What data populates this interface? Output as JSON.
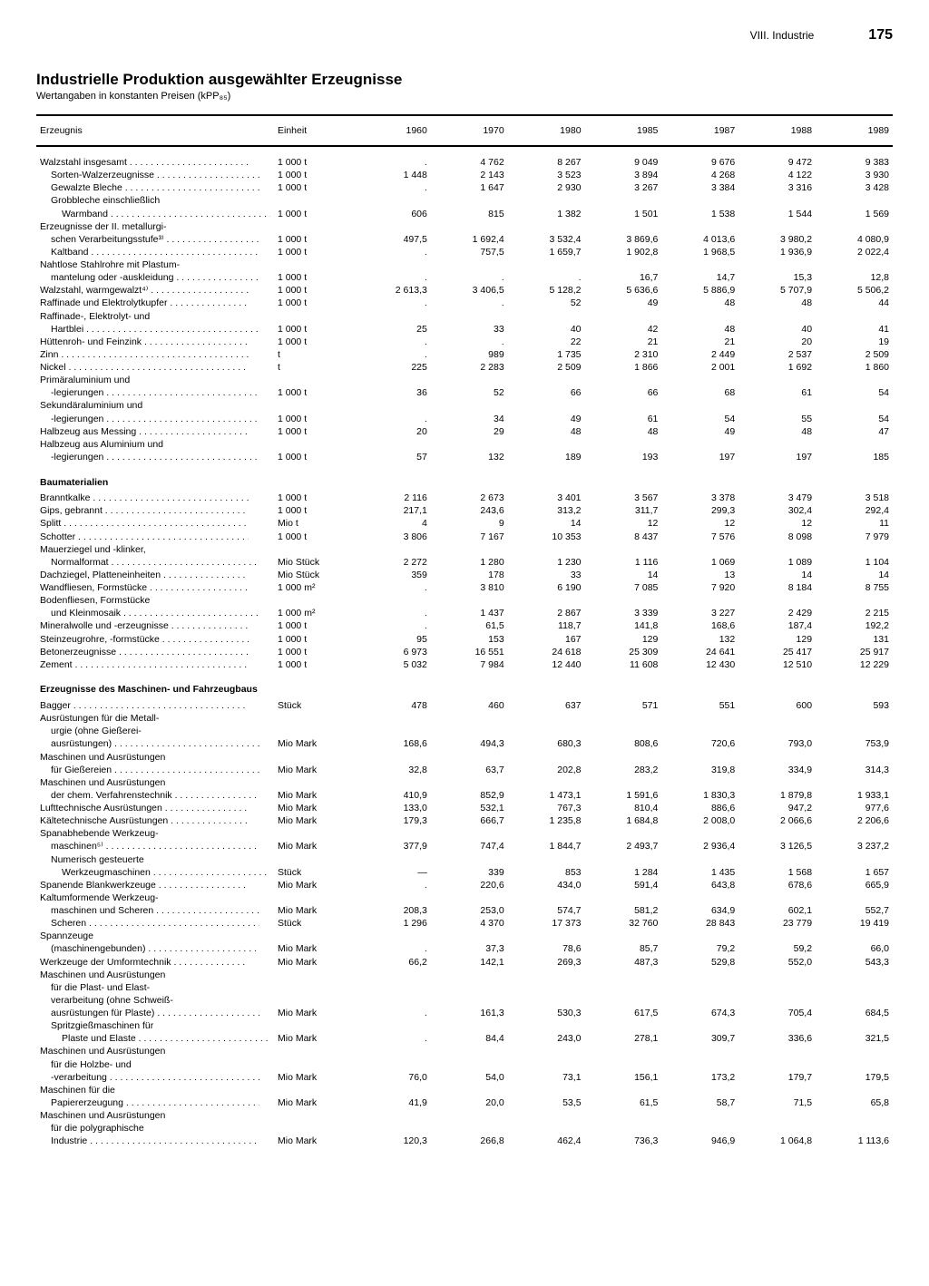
{
  "header": {
    "section": "VIII. Industrie",
    "page": "175"
  },
  "title": "Industrielle Produktion ausgewählter Erzeugnisse",
  "subtitle": "Wertangaben in konstanten Preisen (kPP₈₅)",
  "columns": [
    "Erzeugnis",
    "Einheit",
    "1960",
    "1970",
    "1980",
    "1985",
    "1987",
    "1988",
    "1989"
  ],
  "rows": [
    {
      "type": "spacer"
    },
    {
      "l": "Walzstahl insgesamt",
      "u": "1 000 t",
      "v": [
        ".",
        "4 762",
        "8 267",
        "9 049",
        "9 676",
        "9 472",
        "9 383"
      ]
    },
    {
      "l": "Sorten-Walzerzeugnisse",
      "i": 1,
      "u": "1 000 t",
      "v": [
        "1 448",
        "2 143",
        "3 523",
        "3 894",
        "4 268",
        "4 122",
        "3 930"
      ]
    },
    {
      "l": "Gewalzte Bleche",
      "i": 1,
      "u": "1 000 t",
      "v": [
        ".",
        "1 647",
        "2 930",
        "3 267",
        "3 384",
        "3 316",
        "3 428"
      ]
    },
    {
      "l": "Grobbleche einschließlich",
      "i": 1,
      "cont": true
    },
    {
      "l": "Warmband",
      "i": 2,
      "u": "1 000 t",
      "v": [
        "606",
        "815",
        "1 382",
        "1 501",
        "1 538",
        "1 544",
        "1 569"
      ]
    },
    {
      "l": "Erzeugnisse der II. metallurgi-",
      "cont": true
    },
    {
      "l": "schen Verarbeitungsstufe³⁾",
      "i": 1,
      "u": "1 000 t",
      "v": [
        "497,5",
        "1 692,4",
        "3 532,4",
        "3 869,6",
        "4 013,6",
        "3 980,2",
        "4 080,9"
      ]
    },
    {
      "l": "Kaltband",
      "i": 1,
      "u": "1 000 t",
      "v": [
        ".",
        "757,5",
        "1 659,7",
        "1 902,8",
        "1 968,5",
        "1 936,9",
        "2 022,4"
      ]
    },
    {
      "l": "Nahtlose Stahlrohre mit Plastum-",
      "cont": true
    },
    {
      "l": "mantelung oder -auskleidung",
      "i": 1,
      "u": "1 000 t",
      "v": [
        ".",
        ".",
        ".",
        "16,7",
        "14,7",
        "15,3",
        "12,8"
      ]
    },
    {
      "l": "Walzstahl, warmgewalzt⁴⁾",
      "u": "1 000 t",
      "v": [
        "2 613,3",
        "3 406,5",
        "5 128,2",
        "5 636,6",
        "5 886,9",
        "5 707,9",
        "5 506,2"
      ]
    },
    {
      "l": "Raffinade und Elektrolytkupfer",
      "u": "1 000 t",
      "v": [
        ".",
        ".",
        "52",
        "49",
        "48",
        "48",
        "44"
      ]
    },
    {
      "l": "Raffinade-, Elektrolyt- und",
      "cont": true
    },
    {
      "l": "Hartblei",
      "i": 1,
      "u": "1 000 t",
      "v": [
        "25",
        "33",
        "40",
        "42",
        "48",
        "40",
        "41"
      ]
    },
    {
      "l": "Hüttenroh- und Feinzink",
      "u": "1 000 t",
      "v": [
        ".",
        ".",
        "22",
        "21",
        "21",
        "20",
        "19"
      ]
    },
    {
      "l": "Zinn",
      "u": "t",
      "v": [
        ".",
        "989",
        "1 735",
        "2 310",
        "2 449",
        "2 537",
        "2 509"
      ]
    },
    {
      "l": "Nickel",
      "u": "t",
      "v": [
        "225",
        "2 283",
        "2 509",
        "1 866",
        "2 001",
        "1 692",
        "1 860"
      ]
    },
    {
      "l": "Primäraluminium und",
      "cont": true
    },
    {
      "l": "-legierungen",
      "i": 1,
      "u": "1 000 t",
      "v": [
        "36",
        "52",
        "66",
        "66",
        "68",
        "61",
        "54"
      ]
    },
    {
      "l": "Sekundäraluminium und",
      "cont": true
    },
    {
      "l": "-legierungen",
      "i": 1,
      "u": "1 000 t",
      "v": [
        ".",
        "34",
        "49",
        "61",
        "54",
        "55",
        "54"
      ]
    },
    {
      "l": "Halbzeug aus Messing",
      "u": "1 000 t",
      "v": [
        "20",
        "29",
        "48",
        "48",
        "49",
        "48",
        "47"
      ]
    },
    {
      "l": "Halbzeug aus Aluminium und",
      "cont": true
    },
    {
      "l": "-legierungen",
      "i": 1,
      "u": "1 000 t",
      "v": [
        "57",
        "132",
        "189",
        "193",
        "197",
        "197",
        "185"
      ]
    },
    {
      "type": "section",
      "l": "Baumaterialien"
    },
    {
      "l": "Branntkalke",
      "u": "1 000 t",
      "v": [
        "2 116",
        "2 673",
        "3 401",
        "3 567",
        "3 378",
        "3 479",
        "3 518"
      ]
    },
    {
      "l": "Gips, gebrannt",
      "u": "1 000 t",
      "v": [
        "217,1",
        "243,6",
        "313,2",
        "311,7",
        "299,3",
        "302,4",
        "292,4"
      ]
    },
    {
      "l": "Splitt",
      "u": "Mio t",
      "v": [
        "4",
        "9",
        "14",
        "12",
        "12",
        "12",
        "11"
      ]
    },
    {
      "l": "Schotter",
      "u": "1 000 t",
      "v": [
        "3 806",
        "7 167",
        "10 353",
        "8 437",
        "7 576",
        "8 098",
        "7 979"
      ]
    },
    {
      "l": "Mauerziegel und -klinker,",
      "cont": true
    },
    {
      "l": "Normalformat",
      "i": 1,
      "u": "Mio Stück",
      "v": [
        "2 272",
        "1 280",
        "1 230",
        "1 116",
        "1 069",
        "1 089",
        "1 104"
      ]
    },
    {
      "l": "Dachziegel, Platteneinheiten",
      "u": "Mio Stück",
      "v": [
        "359",
        "178",
        "33",
        "14",
        "13",
        "14",
        "14"
      ]
    },
    {
      "l": "Wandfliesen, Formstücke",
      "u": "1 000 m²",
      "v": [
        ".",
        "3 810",
        "6 190",
        "7 085",
        "7 920",
        "8 184",
        "8 755"
      ]
    },
    {
      "l": "Bodenfliesen, Formstücke",
      "cont": true
    },
    {
      "l": "und Kleinmosaik",
      "i": 1,
      "u": "1 000 m²",
      "v": [
        ".",
        "1 437",
        "2 867",
        "3 339",
        "3 227",
        "2 429",
        "2 215"
      ]
    },
    {
      "l": "Mineralwolle und -erzeugnisse",
      "u": "1 000 t",
      "v": [
        ".",
        "61,5",
        "118,7",
        "141,8",
        "168,6",
        "187,4",
        "192,2"
      ]
    },
    {
      "l": "Steinzeugrohre, -formstücke",
      "u": "1 000 t",
      "v": [
        "95",
        "153",
        "167",
        "129",
        "132",
        "129",
        "131"
      ]
    },
    {
      "l": "Betonerzeugnisse",
      "u": "1 000 t",
      "v": [
        "6 973",
        "16 551",
        "24 618",
        "25 309",
        "24 641",
        "25 417",
        "25 917"
      ]
    },
    {
      "l": "Zement",
      "u": "1 000 t",
      "v": [
        "5 032",
        "7 984",
        "12 440",
        "11 608",
        "12 430",
        "12 510",
        "12 229"
      ]
    },
    {
      "type": "section",
      "l": "Erzeugnisse des Maschinen- und Fahrzeugbaus"
    },
    {
      "l": "Bagger",
      "u": "Stück",
      "v": [
        "478",
        "460",
        "637",
        "571",
        "551",
        "600",
        "593"
      ]
    },
    {
      "l": "Ausrüstungen für die Metall-",
      "cont": true
    },
    {
      "l": "urgie (ohne Gießerei-",
      "i": 1,
      "cont": true
    },
    {
      "l": "ausrüstungen)",
      "i": 1,
      "u": "Mio Mark",
      "v": [
        "168,6",
        "494,3",
        "680,3",
        "808,6",
        "720,6",
        "793,0",
        "753,9"
      ]
    },
    {
      "l": "Maschinen und Ausrüstungen",
      "cont": true
    },
    {
      "l": "für Gießereien",
      "i": 1,
      "u": "Mio Mark",
      "v": [
        "32,8",
        "63,7",
        "202,8",
        "283,2",
        "319,8",
        "334,9",
        "314,3"
      ]
    },
    {
      "l": "Maschinen und Ausrüstungen",
      "cont": true
    },
    {
      "l": "der chem. Verfahrenstechnik",
      "i": 1,
      "u": "Mio Mark",
      "v": [
        "410,9",
        "852,9",
        "1 473,1",
        "1 591,6",
        "1 830,3",
        "1 879,8",
        "1 933,1"
      ]
    },
    {
      "l": "Lufttechnische Ausrüstungen",
      "u": "Mio Mark",
      "v": [
        "133,0",
        "532,1",
        "767,3",
        "810,4",
        "886,6",
        "947,2",
        "977,6"
      ]
    },
    {
      "l": "Kältetechnische Ausrüstungen",
      "u": "Mio Mark",
      "v": [
        "179,3",
        "666,7",
        "1 235,8",
        "1 684,8",
        "2 008,0",
        "2 066,6",
        "2 206,6"
      ]
    },
    {
      "l": "Spanabhebende Werkzeug-",
      "cont": true
    },
    {
      "l": "maschinen⁵⁾",
      "i": 1,
      "u": "Mio Mark",
      "v": [
        "377,9",
        "747,4",
        "1 844,7",
        "2 493,7",
        "2 936,4",
        "3 126,5",
        "3 237,2"
      ]
    },
    {
      "l": "Numerisch gesteuerte",
      "i": 1,
      "cont": true
    },
    {
      "l": "Werkzeugmaschinen",
      "i": 2,
      "u": "Stück",
      "v": [
        "—",
        "339",
        "853",
        "1 284",
        "1 435",
        "1 568",
        "1 657"
      ]
    },
    {
      "l": "Spanende Blankwerkzeuge",
      "u": "Mio Mark",
      "v": [
        ".",
        "220,6",
        "434,0",
        "591,4",
        "643,8",
        "678,6",
        "665,9"
      ]
    },
    {
      "l": "Kaltumformende Werkzeug-",
      "cont": true
    },
    {
      "l": "maschinen und Scheren",
      "i": 1,
      "u": "Mio Mark",
      "v": [
        "208,3",
        "253,0",
        "574,7",
        "581,2",
        "634,9",
        "602,1",
        "552,7"
      ]
    },
    {
      "l": "Scheren",
      "i": 1,
      "u": "Stück",
      "v": [
        "1 296",
        "4 370",
        "17 373",
        "32 760",
        "28 843",
        "23 779",
        "19 419"
      ]
    },
    {
      "l": "Spannzeuge",
      "cont": true
    },
    {
      "l": "(maschinengebunden)",
      "i": 1,
      "u": "Mio Mark",
      "v": [
        ".",
        "37,3",
        "78,6",
        "85,7",
        "79,2",
        "59,2",
        "66,0"
      ]
    },
    {
      "l": "Werkzeuge der Umformtechnik",
      "u": "Mio Mark",
      "v": [
        "66,2",
        "142,1",
        "269,3",
        "487,3",
        "529,8",
        "552,0",
        "543,3"
      ]
    },
    {
      "l": "Maschinen und Ausrüstungen",
      "cont": true
    },
    {
      "l": "für die Plast- und Elast-",
      "i": 1,
      "cont": true
    },
    {
      "l": "verarbeitung (ohne Schweiß-",
      "i": 1,
      "cont": true
    },
    {
      "l": "ausrüstungen für Plaste)",
      "i": 1,
      "u": "Mio Mark",
      "v": [
        ".",
        "161,3",
        "530,3",
        "617,5",
        "674,3",
        "705,4",
        "684,5"
      ]
    },
    {
      "l": "Spritzgießmaschinen für",
      "i": 1,
      "cont": true
    },
    {
      "l": "Plaste und Elaste",
      "i": 2,
      "u": "Mio Mark",
      "v": [
        ".",
        "84,4",
        "243,0",
        "278,1",
        "309,7",
        "336,6",
        "321,5"
      ]
    },
    {
      "l": "Maschinen und Ausrüstungen",
      "cont": true
    },
    {
      "l": "für die Holzbe- und",
      "i": 1,
      "cont": true
    },
    {
      "l": "-verarbeitung",
      "i": 1,
      "u": "Mio Mark",
      "v": [
        "76,0",
        "54,0",
        "73,1",
        "156,1",
        "173,2",
        "179,7",
        "179,5"
      ]
    },
    {
      "l": "Maschinen für die",
      "cont": true
    },
    {
      "l": "Papiererzeugung",
      "i": 1,
      "u": "Mio Mark",
      "v": [
        "41,9",
        "20,0",
        "53,5",
        "61,5",
        "58,7",
        "71,5",
        "65,8"
      ]
    },
    {
      "l": "Maschinen und Ausrüstungen",
      "cont": true
    },
    {
      "l": "für die polygraphische",
      "i": 1,
      "cont": true
    },
    {
      "l": "Industrie",
      "i": 1,
      "u": "Mio Mark",
      "v": [
        "120,3",
        "266,8",
        "462,4",
        "736,3",
        "946,9",
        "1 064,8",
        "1 113,6"
      ]
    }
  ]
}
